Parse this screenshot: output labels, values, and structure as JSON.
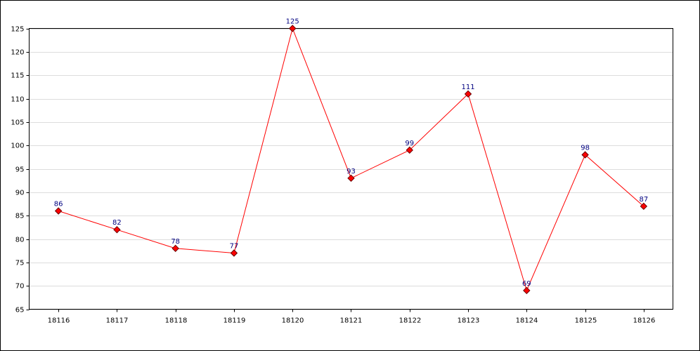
{
  "chart_data": {
    "type": "line",
    "categories": [
      "18116",
      "18117",
      "18118",
      "18119",
      "18120",
      "18121",
      "18122",
      "18123",
      "18124",
      "18125",
      "18126"
    ],
    "series": [
      {
        "color": "#ff0000",
        "values": [
          86,
          82,
          78,
          77,
          125,
          93,
          99,
          111,
          69,
          98,
          87
        ]
      }
    ],
    "ylim": [
      65,
      125
    ],
    "yticks": [
      65,
      70,
      75,
      80,
      85,
      90,
      95,
      100,
      105,
      110,
      115,
      120,
      125
    ],
    "grid": true
  }
}
